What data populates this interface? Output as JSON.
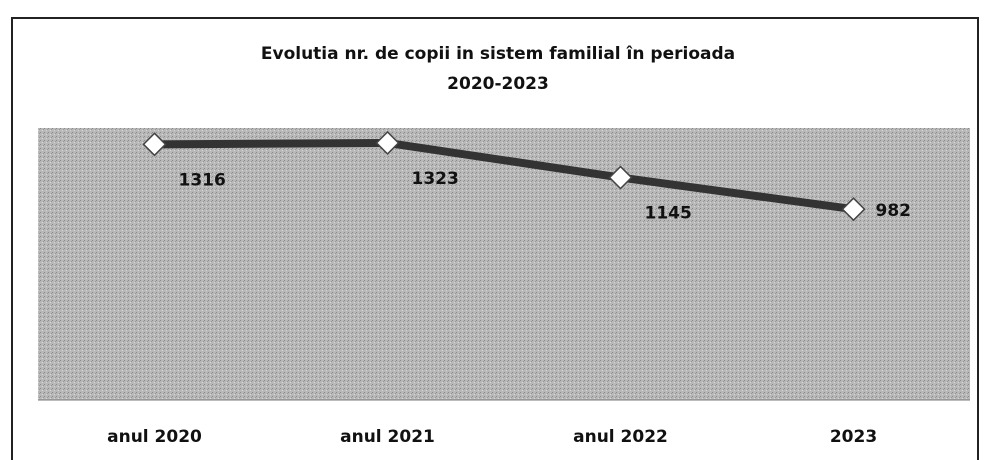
{
  "chart_data": {
    "type": "line",
    "title": [
      "Evolutia nr. de copii in sistem familial în perioada",
      "2020-2023"
    ],
    "categories": [
      "anul 2020",
      "anul 2021",
      "anul 2022",
      "2023"
    ],
    "values": [
      1316,
      1323,
      1145,
      982
    ],
    "color": "#333333",
    "ylim": [
      0,
      1400
    ]
  }
}
